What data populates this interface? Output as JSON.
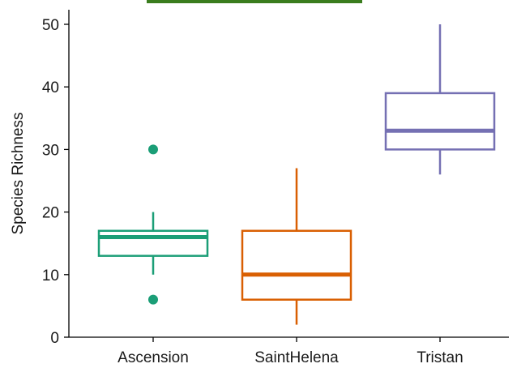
{
  "chart_data": {
    "type": "boxplot",
    "title": "",
    "xlabel": "",
    "ylabel": "Species Richness",
    "ylim": [
      0,
      50
    ],
    "yticks": [
      0,
      10,
      20,
      30,
      40,
      50
    ],
    "grid": false,
    "legend": "none",
    "categories": [
      "Ascension",
      "SaintHelena",
      "Tristan"
    ],
    "series": [
      {
        "category": "Ascension",
        "color": "#1b9e77",
        "whisker_low": 10,
        "q1": 13,
        "median": 16,
        "q3": 17,
        "whisker_high": 20,
        "outliers": [
          30,
          6
        ]
      },
      {
        "category": "SaintHelena",
        "color": "#d95f02",
        "whisker_low": 2,
        "q1": 6,
        "median": 10,
        "q3": 17,
        "whisker_high": 27,
        "outliers": []
      },
      {
        "category": "Tristan",
        "color": "#7570b3",
        "whisker_low": 26,
        "q1": 30,
        "median": 33,
        "q3": 39,
        "whisker_high": 50,
        "outliers": []
      }
    ],
    "top_strip_color": "#3a7d1e"
  }
}
